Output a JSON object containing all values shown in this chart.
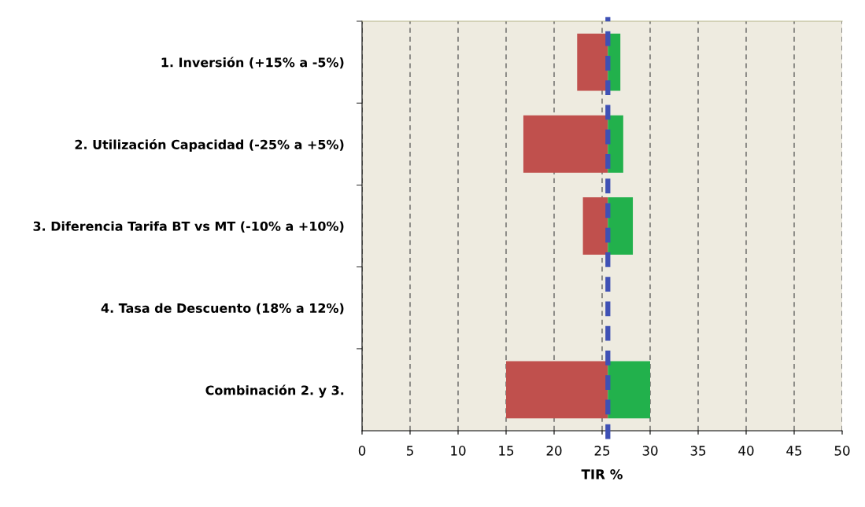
{
  "chart_data": {
    "type": "bar",
    "orientation": "horizontal",
    "xlabel": "TIR %",
    "categories": [
      "1. Inversión (+15% a -5%)",
      "2. Utilización Capacidad (-25% a +5%)",
      "3. Diferencia Tarifa BT vs MT (-10% a +10%)",
      "4. Tasa de Descuento (18% a 12%)",
      "Combinación 2. y 3."
    ],
    "series": [
      {
        "color": "#c0504d",
        "base": [
          22.4,
          16.8,
          23.0,
          null,
          15.0
        ],
        "values": [
          3.2,
          8.8,
          2.6,
          null,
          10.6
        ]
      },
      {
        "color": "#22b14c",
        "base": [
          25.6,
          25.6,
          25.6,
          null,
          25.6
        ],
        "values": [
          1.3,
          1.6,
          2.6,
          null,
          4.4
        ]
      }
    ],
    "xlim": [
      0,
      50
    ],
    "xticks": [
      0,
      5,
      10,
      15,
      20,
      25,
      30,
      35,
      40,
      45,
      50
    ],
    "grid": "x",
    "ref_lines": [
      {
        "axis": "x",
        "value": 25.6,
        "color": "#3f51b5",
        "line_style": "dashed"
      }
    ]
  }
}
